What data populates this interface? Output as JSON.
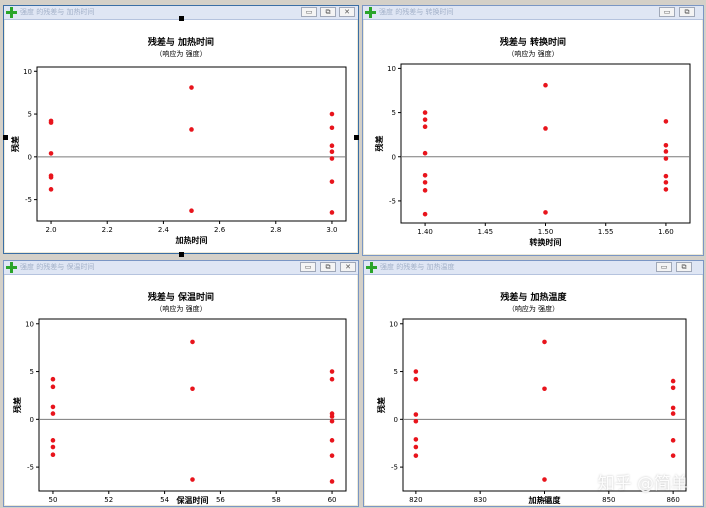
{
  "watermark": "知乎 @简单",
  "icon_names": [
    "plus-icon",
    "minimize-icon",
    "restore-icon",
    "close-icon"
  ],
  "windows": [
    {
      "title": "强度 的残差与 加热时间",
      "chart_data": {
        "type": "scatter",
        "title": "残差与 加热时间",
        "subtitle": "（响应为 强度）",
        "xlabel": "加热时间",
        "ylabel": "残差",
        "xlim": [
          1.95,
          3.05
        ],
        "ylim": [
          -7.5,
          10.5
        ],
        "xticks": [
          "2.0",
          "2.2",
          "2.4",
          "2.6",
          "2.8",
          "3.0"
        ],
        "xtick_values": [
          2.0,
          2.2,
          2.4,
          2.6,
          2.8,
          3.0
        ],
        "yticks": [
          "-5",
          "0",
          "5",
          "10"
        ],
        "ytick_values": [
          -5,
          0,
          5,
          10
        ],
        "points": [
          {
            "x": 2.0,
            "y": 4.2
          },
          {
            "x": 2.0,
            "y": 4.0
          },
          {
            "x": 2.0,
            "y": 0.4
          },
          {
            "x": 2.0,
            "y": -2.2
          },
          {
            "x": 2.0,
            "y": -2.4
          },
          {
            "x": 2.0,
            "y": -3.8
          },
          {
            "x": 2.5,
            "y": 8.1
          },
          {
            "x": 2.5,
            "y": 3.2
          },
          {
            "x": 2.5,
            "y": -6.3
          },
          {
            "x": 3.0,
            "y": 5.0
          },
          {
            "x": 3.0,
            "y": 3.4
          },
          {
            "x": 3.0,
            "y": 1.3
          },
          {
            "x": 3.0,
            "y": 0.6
          },
          {
            "x": 3.0,
            "y": -0.2
          },
          {
            "x": 3.0,
            "y": -2.9
          },
          {
            "x": 3.0,
            "y": -6.5
          }
        ],
        "marker_color": "#e8141c"
      }
    },
    {
      "title": "强度 的残差与 转换时间",
      "chart_data": {
        "type": "scatter",
        "title": "残差与 转换时间",
        "subtitle": "（响应为 强度）",
        "xlabel": "转换时间",
        "ylabel": "残差",
        "xlim": [
          1.38,
          1.62
        ],
        "ylim": [
          -7.5,
          10.5
        ],
        "xticks": [
          "1.40",
          "1.45",
          "1.50",
          "1.55",
          "1.60"
        ],
        "xtick_values": [
          1.4,
          1.45,
          1.5,
          1.55,
          1.6
        ],
        "yticks": [
          "-5",
          "0",
          "5",
          "10"
        ],
        "ytick_values": [
          -5,
          0,
          5,
          10
        ],
        "points": [
          {
            "x": 1.4,
            "y": 5.0
          },
          {
            "x": 1.4,
            "y": 4.2
          },
          {
            "x": 1.4,
            "y": 3.4
          },
          {
            "x": 1.4,
            "y": 0.4
          },
          {
            "x": 1.4,
            "y": -2.1
          },
          {
            "x": 1.4,
            "y": -2.9
          },
          {
            "x": 1.4,
            "y": -3.8
          },
          {
            "x": 1.4,
            "y": -6.5
          },
          {
            "x": 1.5,
            "y": 8.1
          },
          {
            "x": 1.5,
            "y": 3.2
          },
          {
            "x": 1.5,
            "y": -6.3
          },
          {
            "x": 1.6,
            "y": 4.0
          },
          {
            "x": 1.6,
            "y": 1.3
          },
          {
            "x": 1.6,
            "y": 0.6
          },
          {
            "x": 1.6,
            "y": -0.2
          },
          {
            "x": 1.6,
            "y": -2.2
          },
          {
            "x": 1.6,
            "y": -2.9
          },
          {
            "x": 1.6,
            "y": -3.7
          }
        ],
        "marker_color": "#e8141c"
      }
    },
    {
      "title": "强度 的残差与 保温时间",
      "chart_data": {
        "type": "scatter",
        "title": "残差与 保温时间",
        "subtitle": "（响应为 强度）",
        "xlabel": "保温时间",
        "ylabel": "残差",
        "xlim": [
          49.5,
          60.5
        ],
        "ylim": [
          -7.5,
          10.5
        ],
        "xticks": [
          "50",
          "52",
          "54",
          "56",
          "58",
          "60"
        ],
        "xtick_values": [
          50,
          52,
          54,
          56,
          58,
          60
        ],
        "yticks": [
          "-5",
          "0",
          "5",
          "10"
        ],
        "ytick_values": [
          -5,
          0,
          5,
          10
        ],
        "points": [
          {
            "x": 50,
            "y": 4.2
          },
          {
            "x": 50,
            "y": 3.4
          },
          {
            "x": 50,
            "y": 1.3
          },
          {
            "x": 50,
            "y": 0.6
          },
          {
            "x": 50,
            "y": -2.2
          },
          {
            "x": 50,
            "y": -2.9
          },
          {
            "x": 50,
            "y": -3.7
          },
          {
            "x": 55,
            "y": 8.1
          },
          {
            "x": 55,
            "y": 3.2
          },
          {
            "x": 55,
            "y": -6.3
          },
          {
            "x": 60,
            "y": 5.0
          },
          {
            "x": 60,
            "y": 4.2
          },
          {
            "x": 60,
            "y": 0.6
          },
          {
            "x": 60,
            "y": 0.3
          },
          {
            "x": 60,
            "y": -0.2
          },
          {
            "x": 60,
            "y": -2.2
          },
          {
            "x": 60,
            "y": -3.8
          },
          {
            "x": 60,
            "y": -6.5
          }
        ],
        "marker_color": "#e8141c"
      }
    },
    {
      "title": "强度 的残差与 加热温度",
      "chart_data": {
        "type": "scatter",
        "title": "残差与 加热温度",
        "subtitle": "（响应为 强度）",
        "xlabel": "加热温度",
        "ylabel": "残差",
        "xlim": [
          818,
          862
        ],
        "ylim": [
          -7.5,
          10.5
        ],
        "xticks": [
          "820",
          "830",
          "840",
          "850",
          "860"
        ],
        "xtick_values": [
          820,
          830,
          840,
          850,
          860
        ],
        "yticks": [
          "-5",
          "0",
          "5",
          "10"
        ],
        "ytick_values": [
          -5,
          0,
          5,
          10
        ],
        "points": [
          {
            "x": 820,
            "y": 5.0
          },
          {
            "x": 820,
            "y": 4.2
          },
          {
            "x": 820,
            "y": 0.5
          },
          {
            "x": 820,
            "y": -0.2
          },
          {
            "x": 820,
            "y": -2.1
          },
          {
            "x": 820,
            "y": -2.9
          },
          {
            "x": 820,
            "y": -3.8
          },
          {
            "x": 840,
            "y": 8.1
          },
          {
            "x": 840,
            "y": 3.2
          },
          {
            "x": 840,
            "y": -6.3
          },
          {
            "x": 860,
            "y": 4.0
          },
          {
            "x": 860,
            "y": 3.3
          },
          {
            "x": 860,
            "y": 1.2
          },
          {
            "x": 860,
            "y": 0.6
          },
          {
            "x": 860,
            "y": -2.2
          },
          {
            "x": 860,
            "y": -3.8
          }
        ],
        "marker_color": "#e8141c"
      }
    }
  ]
}
